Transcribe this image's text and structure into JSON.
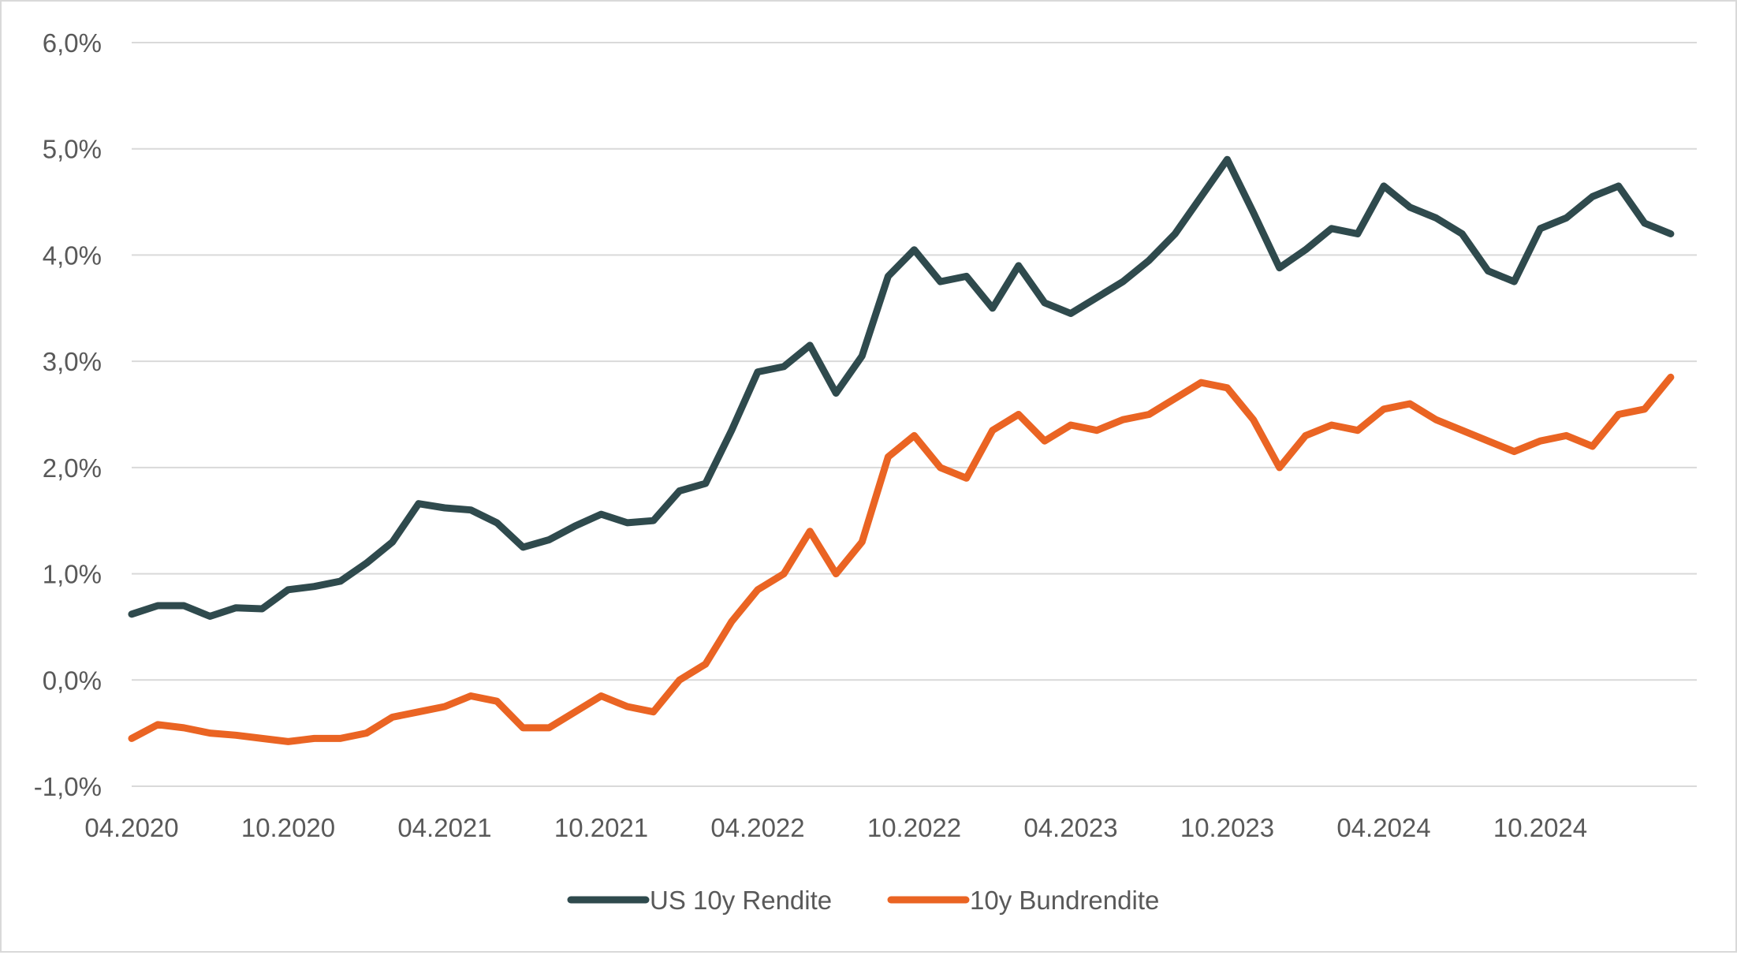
{
  "chart_data": {
    "type": "line",
    "title": "",
    "xlabel": "",
    "ylabel": "",
    "y_ticks": [
      "6,0%",
      "5,0%",
      "4,0%",
      "3,0%",
      "2,0%",
      "1,0%",
      "0,0%",
      "-1,0%"
    ],
    "y_tick_values": [
      6,
      5,
      4,
      3,
      2,
      1,
      0,
      -1
    ],
    "ylim": [
      -1,
      6
    ],
    "x_ticks": [
      "04.2020",
      "10.2020",
      "04.2021",
      "10.2021",
      "04.2022",
      "10.2022",
      "04.2023",
      "10.2023",
      "04.2024",
      "10.2024"
    ],
    "x_tick_dates": [
      "2020-04",
      "2020-10",
      "2021-04",
      "2021-10",
      "2022-04",
      "2022-10",
      "2023-04",
      "2023-10",
      "2024-04",
      "2024-10"
    ],
    "xlim": [
      "2020-04",
      "2025-04"
    ],
    "grid": true,
    "legend_position": "bottom",
    "series": [
      {
        "name": "US 10y Rendite",
        "color": "#2f4a4d",
        "x": [
          "2020-04",
          "2020-05",
          "2020-06",
          "2020-07",
          "2020-08",
          "2020-09",
          "2020-10",
          "2020-11",
          "2020-12",
          "2021-01",
          "2021-02",
          "2021-03",
          "2021-04",
          "2021-05",
          "2021-06",
          "2021-07",
          "2021-08",
          "2021-09",
          "2021-10",
          "2021-11",
          "2021-12",
          "2022-01",
          "2022-02",
          "2022-03",
          "2022-04",
          "2022-05",
          "2022-06",
          "2022-07",
          "2022-08",
          "2022-09",
          "2022-10",
          "2022-11",
          "2022-12",
          "2023-01",
          "2023-02",
          "2023-03",
          "2023-04",
          "2023-05",
          "2023-06",
          "2023-07",
          "2023-08",
          "2023-09",
          "2023-10",
          "2023-11",
          "2023-12",
          "2024-01",
          "2024-02",
          "2024-03",
          "2024-04",
          "2024-05",
          "2024-06",
          "2024-07",
          "2024-08",
          "2024-09",
          "2024-10",
          "2024-11",
          "2024-12",
          "2025-01",
          "2025-02",
          "2025-03"
        ],
        "values": [
          0.62,
          0.7,
          0.7,
          0.6,
          0.68,
          0.67,
          0.85,
          0.88,
          0.93,
          1.1,
          1.3,
          1.66,
          1.62,
          1.6,
          1.48,
          1.25,
          1.32,
          1.45,
          1.56,
          1.48,
          1.5,
          1.78,
          1.85,
          2.35,
          2.9,
          2.95,
          3.15,
          2.7,
          3.05,
          3.8,
          4.05,
          3.75,
          3.8,
          3.5,
          3.9,
          3.55,
          3.45,
          3.6,
          3.75,
          3.95,
          4.2,
          4.55,
          4.9,
          4.4,
          3.88,
          4.05,
          4.25,
          4.2,
          4.65,
          4.45,
          4.35,
          4.2,
          3.85,
          3.75,
          4.25,
          4.35,
          4.55,
          4.65,
          4.3,
          4.2
        ]
      },
      {
        "name": "10y Bundrendite",
        "color": "#ea6423",
        "x": [
          "2020-04",
          "2020-05",
          "2020-06",
          "2020-07",
          "2020-08",
          "2020-09",
          "2020-10",
          "2020-11",
          "2020-12",
          "2021-01",
          "2021-02",
          "2021-03",
          "2021-04",
          "2021-05",
          "2021-06",
          "2021-07",
          "2021-08",
          "2021-09",
          "2021-10",
          "2021-11",
          "2021-12",
          "2022-01",
          "2022-02",
          "2022-03",
          "2022-04",
          "2022-05",
          "2022-06",
          "2022-07",
          "2022-08",
          "2022-09",
          "2022-10",
          "2022-11",
          "2022-12",
          "2023-01",
          "2023-02",
          "2023-03",
          "2023-04",
          "2023-05",
          "2023-06",
          "2023-07",
          "2023-08",
          "2023-09",
          "2023-10",
          "2023-11",
          "2023-12",
          "2024-01",
          "2024-02",
          "2024-03",
          "2024-04",
          "2024-05",
          "2024-06",
          "2024-07",
          "2024-08",
          "2024-09",
          "2024-10",
          "2024-11",
          "2024-12",
          "2025-01",
          "2025-02",
          "2025-03"
        ],
        "values": [
          -0.55,
          -0.42,
          -0.45,
          -0.5,
          -0.52,
          -0.55,
          -0.58,
          -0.55,
          -0.55,
          -0.5,
          -0.35,
          -0.3,
          -0.25,
          -0.15,
          -0.2,
          -0.45,
          -0.45,
          -0.3,
          -0.15,
          -0.25,
          -0.3,
          0.0,
          0.15,
          0.55,
          0.85,
          1.0,
          1.4,
          1.0,
          1.3,
          2.1,
          2.3,
          2.0,
          1.9,
          2.35,
          2.5,
          2.25,
          2.4,
          2.35,
          2.45,
          2.5,
          2.65,
          2.8,
          2.75,
          2.45,
          2.0,
          2.3,
          2.4,
          2.35,
          2.55,
          2.6,
          2.45,
          2.35,
          2.25,
          2.15,
          2.25,
          2.3,
          2.2,
          2.5,
          2.55,
          2.85
        ]
      }
    ]
  }
}
